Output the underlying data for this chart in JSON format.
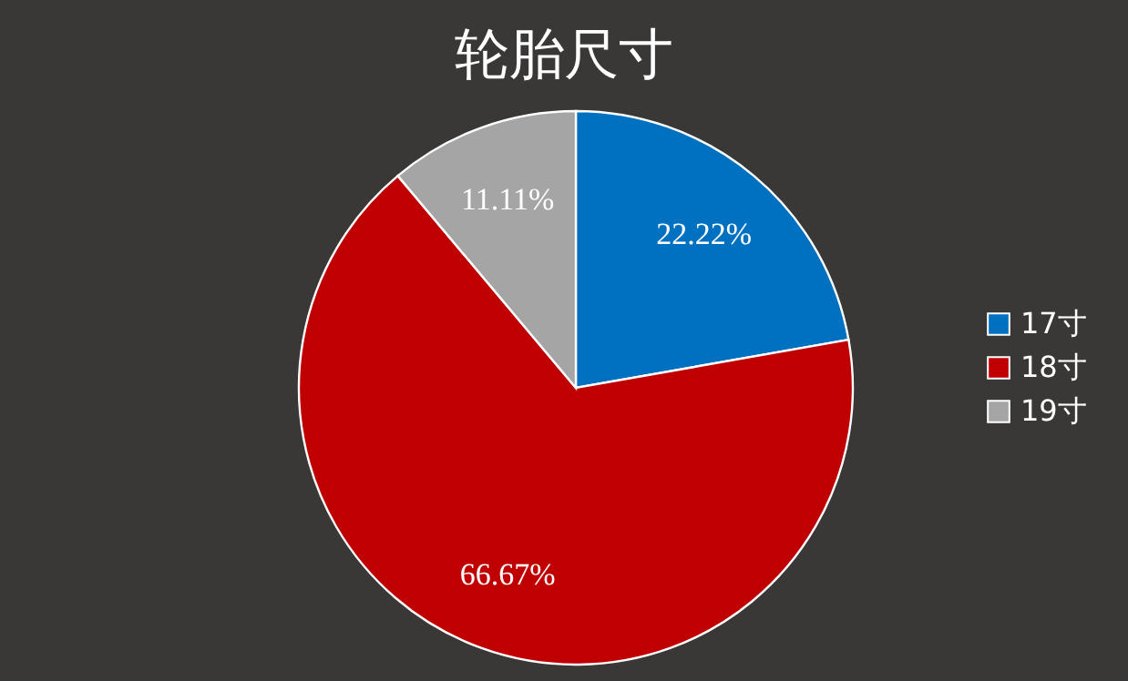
{
  "chart_data": {
    "type": "pie",
    "title": "轮胎尺寸",
    "categories": [
      "17寸",
      "18寸",
      "19寸"
    ],
    "values": [
      22.22,
      66.67,
      11.11
    ],
    "colors": [
      "#0070c0",
      "#c00000",
      "#a5a5a5"
    ],
    "value_labels": [
      "22.22%",
      "66.67%",
      "11.11%"
    ],
    "legend": "right"
  }
}
